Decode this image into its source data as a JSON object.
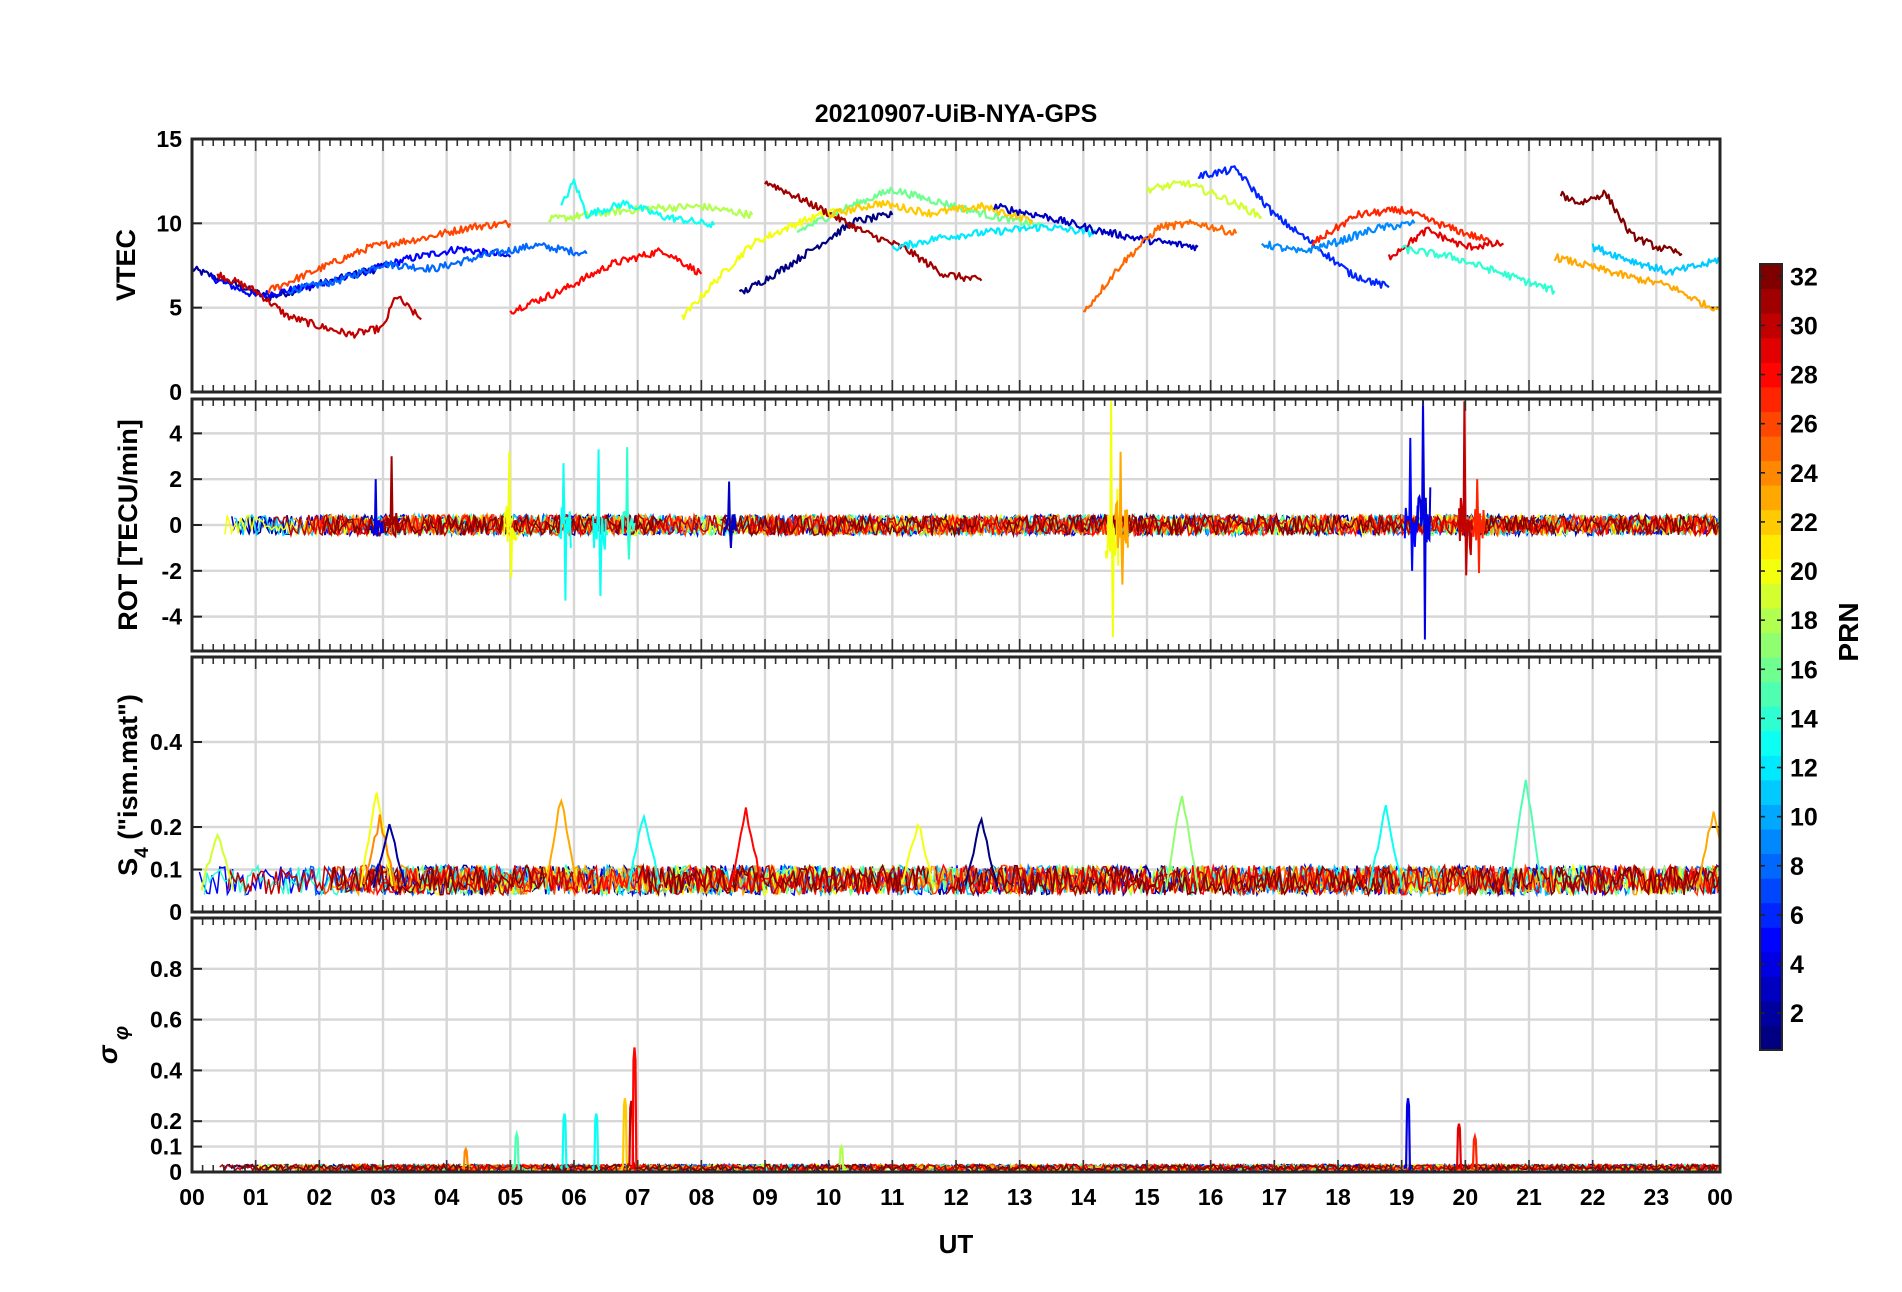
{
  "figure": {
    "title": "20210907-UiB-NYA-GPS",
    "xlabel": "UT",
    "xticks": [
      "00",
      "01",
      "02",
      "03",
      "04",
      "05",
      "06",
      "07",
      "08",
      "09",
      "10",
      "11",
      "12",
      "13",
      "14",
      "15",
      "16",
      "17",
      "18",
      "19",
      "20",
      "21",
      "22",
      "23",
      "00"
    ]
  },
  "colorbar": {
    "label": "PRN",
    "colormap": "jet",
    "range": [
      1,
      32
    ],
    "ticks": [
      "2",
      "4",
      "6",
      "8",
      "10",
      "12",
      "14",
      "16",
      "18",
      "20",
      "22",
      "24",
      "26",
      "28",
      "30",
      "32"
    ]
  },
  "chart_data": [
    {
      "type": "line",
      "ylabel": "VTEC",
      "ylim": [
        0,
        15
      ],
      "yticks": [
        "0",
        "5",
        "10",
        "15"
      ],
      "xlim": [
        0,
        24
      ],
      "grid": true,
      "series": [
        {
          "prn": 2,
          "x": [
            0.0,
            0.6,
            1.2,
            1.8,
            2.4,
            3.0
          ],
          "values": [
            7.3,
            6.5,
            5.6,
            6.2,
            6.8,
            7.4
          ]
        },
        {
          "prn": 5,
          "x": [
            0.3,
            1.0,
            1.8,
            2.6,
            3.4,
            4.2,
            5.0
          ],
          "values": [
            6.8,
            5.7,
            6.2,
            7.0,
            7.9,
            8.5,
            8.0
          ]
        },
        {
          "prn": 8,
          "x": [
            1.5,
            2.3,
            3.0,
            3.8,
            4.6,
            5.4,
            6.2
          ],
          "values": [
            6.0,
            6.6,
            7.6,
            7.3,
            8.1,
            8.7,
            8.2
          ]
        },
        {
          "prn": 30,
          "x": [
            0.4,
            1.0,
            1.5,
            2.0,
            2.5,
            3.0,
            3.2,
            3.6
          ],
          "values": [
            7.0,
            6.0,
            4.5,
            3.9,
            3.4,
            3.8,
            5.7,
            4.3
          ]
        },
        {
          "prn": 26,
          "x": [
            1.2,
            2.0,
            2.8,
            3.6,
            4.4,
            5.0
          ],
          "values": [
            6.0,
            7.3,
            8.6,
            9.1,
            9.8,
            10.0
          ]
        },
        {
          "prn": 28,
          "x": [
            5.0,
            5.8,
            6.6,
            7.4,
            8.0
          ],
          "values": [
            4.8,
            6.0,
            7.6,
            8.4,
            7.0
          ]
        },
        {
          "prn": 18,
          "x": [
            5.6,
            6.4,
            7.2,
            8.0,
            8.8
          ],
          "values": [
            10.2,
            10.6,
            10.9,
            11.0,
            10.5
          ]
        },
        {
          "prn": 13,
          "x": [
            5.8,
            6.0,
            6.2,
            6.8,
            7.4,
            8.2
          ],
          "values": [
            11.0,
            12.5,
            10.5,
            11.2,
            10.4,
            9.9
          ]
        },
        {
          "prn": 20,
          "x": [
            7.7,
            8.2,
            8.8,
            9.5,
            10.2
          ],
          "values": [
            4.4,
            6.5,
            8.8,
            10.0,
            10.9
          ]
        },
        {
          "prn": 1,
          "x": [
            8.6,
            9.2,
            9.8,
            10.4,
            11.0
          ],
          "values": [
            5.8,
            7.1,
            8.6,
            10.1,
            10.5
          ]
        },
        {
          "prn": 31,
          "x": [
            9.0,
            9.8,
            10.6,
            11.2,
            11.8,
            12.4
          ],
          "values": [
            12.5,
            11.0,
            9.4,
            8.5,
            7.0,
            6.6
          ]
        },
        {
          "prn": 16,
          "x": [
            9.5,
            10.2,
            11.0,
            11.8,
            12.6,
            13.4
          ],
          "values": [
            9.5,
            10.8,
            12.0,
            11.2,
            10.4,
            9.8
          ]
        },
        {
          "prn": 22,
          "x": [
            10.0,
            10.8,
            11.6,
            12.4,
            13.2
          ],
          "values": [
            10.5,
            11.2,
            10.6,
            11.0,
            10.2
          ]
        },
        {
          "prn": 12,
          "x": [
            11.0,
            11.8,
            12.6,
            13.4,
            14.2
          ],
          "values": [
            8.5,
            9.2,
            9.5,
            9.8,
            9.4
          ]
        },
        {
          "prn": 3,
          "x": [
            12.6,
            13.4,
            14.2,
            15.0,
            15.8
          ],
          "values": [
            11.0,
            10.4,
            9.6,
            9.0,
            8.6
          ]
        },
        {
          "prn": 25,
          "x": [
            14.0,
            14.6,
            15.2,
            15.8,
            16.4
          ],
          "values": [
            4.7,
            7.6,
            9.8,
            10.0,
            9.4
          ]
        },
        {
          "prn": 19,
          "x": [
            15.0,
            15.6,
            16.2,
            16.8
          ],
          "values": [
            12.0,
            12.4,
            11.5,
            10.4
          ]
        },
        {
          "prn": 6,
          "x": [
            15.8,
            16.4,
            17.0,
            17.6,
            18.2,
            18.8
          ],
          "values": [
            12.8,
            13.2,
            10.5,
            8.8,
            7.0,
            6.2
          ]
        },
        {
          "prn": 9,
          "x": [
            16.8,
            17.4,
            18.0,
            18.6,
            19.2
          ],
          "values": [
            8.8,
            8.3,
            8.9,
            9.7,
            10.0
          ]
        },
        {
          "prn": 27,
          "x": [
            17.6,
            18.3,
            19.0,
            19.7,
            20.4
          ],
          "values": [
            8.8,
            10.5,
            10.8,
            9.8,
            8.9
          ]
        },
        {
          "prn": 29,
          "x": [
            18.8,
            19.4,
            20.0,
            20.6
          ],
          "values": [
            8.0,
            9.6,
            8.6,
            8.8
          ]
        },
        {
          "prn": 14,
          "x": [
            19.0,
            19.8,
            20.6,
            21.4
          ],
          "values": [
            8.5,
            8.0,
            7.0,
            6.0
          ]
        },
        {
          "prn": 32,
          "x": [
            21.5,
            21.8,
            22.2,
            22.6,
            23.0,
            23.4
          ],
          "values": [
            11.7,
            11.2,
            11.8,
            9.3,
            8.6,
            8.2
          ]
        },
        {
          "prn": 23,
          "x": [
            21.4,
            22.0,
            22.6,
            23.2,
            23.8,
            24.0
          ],
          "values": [
            8.0,
            7.4,
            6.8,
            6.3,
            5.1,
            5.0
          ]
        },
        {
          "prn": 11,
          "x": [
            22.0,
            22.6,
            23.2,
            23.8,
            24.0
          ],
          "values": [
            8.6,
            7.8,
            7.1,
            7.6,
            7.9
          ]
        }
      ]
    },
    {
      "type": "line",
      "ylabel": "ROT [TECU/min]",
      "ylim": [
        -5.5,
        5.5
      ],
      "yticks": [
        "-4",
        "-2",
        "0",
        "2",
        "4"
      ],
      "xlim": [
        0,
        24
      ],
      "grid": true,
      "note_noise": "dense fluctuations around 0, typically within ±0.6",
      "spikes": [
        {
          "prn": 4,
          "x": 2.9,
          "min": -0.5,
          "max": 2.0
        },
        {
          "prn": 31,
          "x": 3.15,
          "min": -0.4,
          "max": 3.0
        },
        {
          "prn": 20,
          "x": 5.0,
          "min": -2.3,
          "max": 3.2
        },
        {
          "prn": 13,
          "x": 5.85,
          "min": -3.3,
          "max": 2.7
        },
        {
          "prn": 13,
          "x": 6.4,
          "min": -3.1,
          "max": 3.3
        },
        {
          "prn": 14,
          "x": 6.85,
          "min": -1.5,
          "max": 3.4
        },
        {
          "prn": 3,
          "x": 8.45,
          "min": -1.0,
          "max": 1.9
        },
        {
          "prn": 20,
          "x": 14.45,
          "min": -4.9,
          "max": 5.4
        },
        {
          "prn": 23,
          "x": 14.6,
          "min": -2.6,
          "max": 3.2
        },
        {
          "prn": 5,
          "x": 19.15,
          "min": -2.0,
          "max": 3.8
        },
        {
          "prn": 4,
          "x": 19.35,
          "min": -5.0,
          "max": 5.5
        },
        {
          "prn": 30,
          "x": 20.0,
          "min": -2.2,
          "max": 5.4
        },
        {
          "prn": 27,
          "x": 20.2,
          "min": -2.1,
          "max": 2.0
        }
      ]
    },
    {
      "type": "line",
      "ylabel": "S4 (\"ism.mat\")",
      "ylim": [
        0,
        0.6
      ],
      "yticks": [
        "0",
        "0.1",
        "0.2",
        "0.4"
      ],
      "xlim": [
        0,
        24
      ],
      "grid": true,
      "note_noise": "baseline between 0.03 and 0.12",
      "peaks": [
        {
          "prn": 19,
          "x": 0.4,
          "value": 0.19
        },
        {
          "prn": 20,
          "x": 2.9,
          "value": 0.29
        },
        {
          "prn": 24,
          "x": 2.95,
          "value": 0.22
        },
        {
          "prn": 2,
          "x": 3.1,
          "value": 0.21
        },
        {
          "prn": 23,
          "x": 5.8,
          "value": 0.27
        },
        {
          "prn": 13,
          "x": 7.1,
          "value": 0.23
        },
        {
          "prn": 28,
          "x": 8.7,
          "value": 0.24
        },
        {
          "prn": 20,
          "x": 11.4,
          "value": 0.21
        },
        {
          "prn": 1,
          "x": 12.4,
          "value": 0.22
        },
        {
          "prn": 17,
          "x": 15.55,
          "value": 0.28
        },
        {
          "prn": 13,
          "x": 18.75,
          "value": 0.25
        },
        {
          "prn": 15,
          "x": 20.95,
          "value": 0.32
        },
        {
          "prn": 23,
          "x": 23.9,
          "value": 0.24
        }
      ]
    },
    {
      "type": "line",
      "ylabel": "σ_φ",
      "ylim": [
        0,
        1
      ],
      "yticks": [
        "0",
        "0.1",
        "0.2",
        "0.4",
        "0.6",
        "0.8"
      ],
      "xlim": [
        0,
        24
      ],
      "grid": true,
      "note_noise": "baseline between 0.0 and 0.04",
      "peaks": [
        {
          "prn": 24,
          "x": 4.3,
          "value": 0.09
        },
        {
          "prn": 15,
          "x": 5.1,
          "value": 0.15
        },
        {
          "prn": 13,
          "x": 5.85,
          "value": 0.23
        },
        {
          "prn": 13,
          "x": 6.35,
          "value": 0.23
        },
        {
          "prn": 22,
          "x": 6.8,
          "value": 0.29
        },
        {
          "prn": 30,
          "x": 6.9,
          "value": 0.28
        },
        {
          "prn": 28,
          "x": 6.95,
          "value": 0.49
        },
        {
          "prn": 18,
          "x": 10.2,
          "value": 0.1
        },
        {
          "prn": 4,
          "x": 19.1,
          "value": 0.29
        },
        {
          "prn": 29,
          "x": 19.9,
          "value": 0.19
        },
        {
          "prn": 27,
          "x": 20.15,
          "value": 0.14
        }
      ]
    }
  ]
}
